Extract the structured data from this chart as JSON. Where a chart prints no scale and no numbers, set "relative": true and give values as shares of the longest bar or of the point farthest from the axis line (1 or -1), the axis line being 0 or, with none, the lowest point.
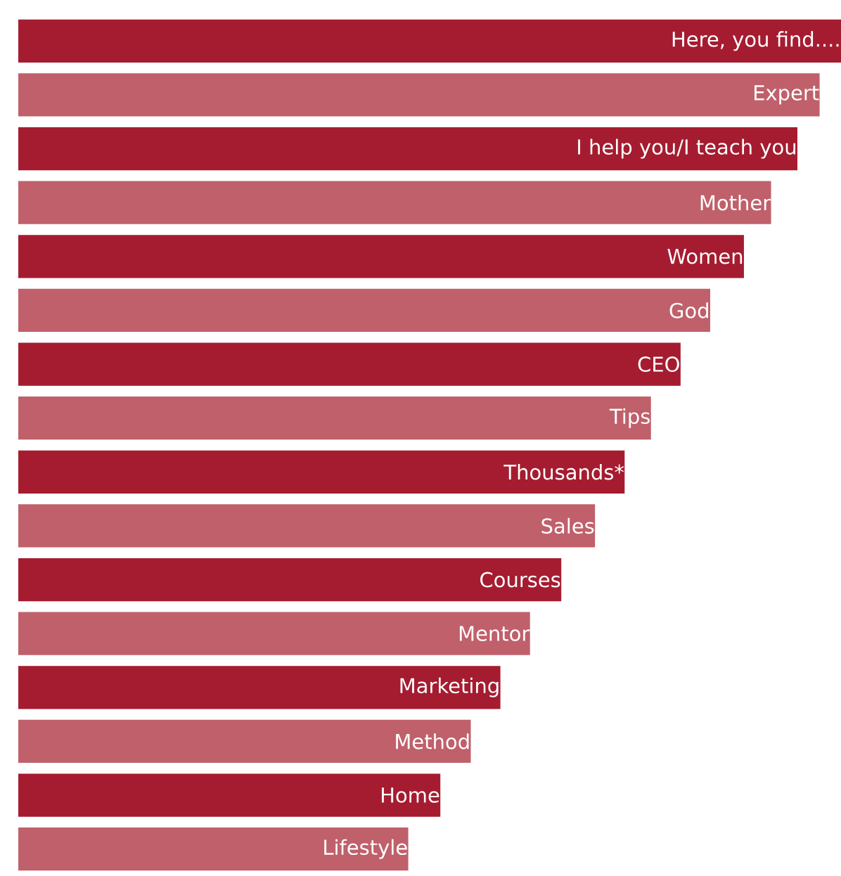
{
  "chart_data": {
    "type": "bar",
    "orientation": "horizontal",
    "relative": true,
    "categories": [
      "Here, you find....",
      "Expert",
      "I help you/I teach you",
      "Mother",
      "Women",
      "God",
      "CEO",
      "Tips",
      "Thousands*",
      "Sales",
      "Courses",
      "Mentor",
      "Marketing",
      "Method",
      "Home",
      "Lifestyle"
    ],
    "values": [
      1,
      0.974,
      0.947,
      0.915,
      0.882,
      0.841,
      0.805,
      0.769,
      0.737,
      0.701,
      0.66,
      0.622,
      0.586,
      0.55,
      0.513,
      0.474
    ],
    "colors": [
      "#a51c30",
      "#c0606b",
      "#a51c30",
      "#c0606b",
      "#a51c30",
      "#c0606b",
      "#a51c30",
      "#c0606b",
      "#a51c30",
      "#c0606b",
      "#a51c30",
      "#c0606b",
      "#a51c30",
      "#c0606b",
      "#a51c30",
      "#c0606b"
    ]
  }
}
